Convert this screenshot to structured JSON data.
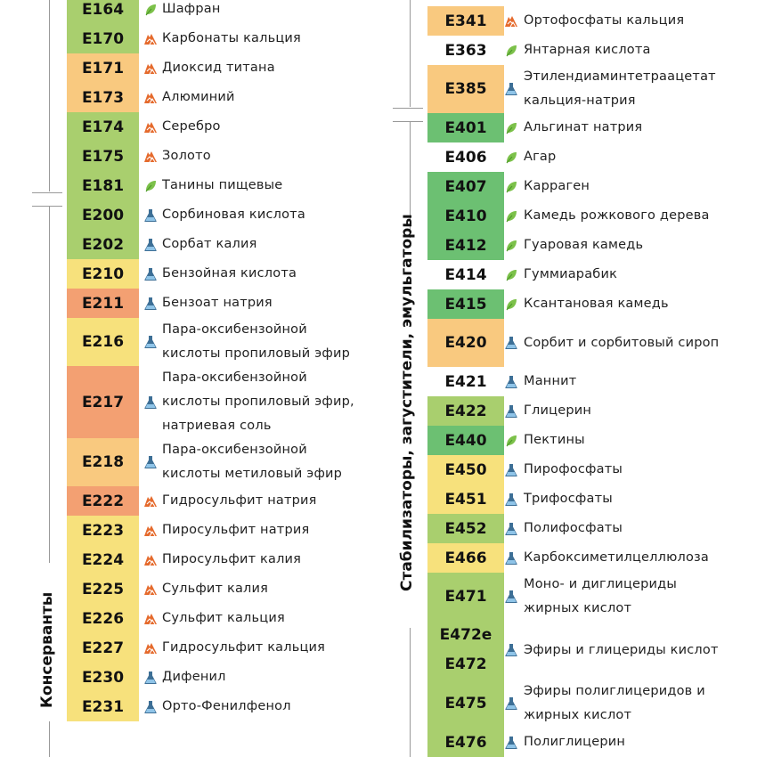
{
  "colors": {
    "green": "#a9cf6e",
    "darkgreen": "#6cc072",
    "yellow": "#f7e17c",
    "lightorange": "#f9c97f",
    "orange": "#f3a072",
    "white": "#ffffff"
  },
  "left_label": "Консерванты",
  "right_label": "Стабилизаторы, загустители, эмульгаторы",
  "left_column": [
    {
      "codes": [
        "E164"
      ],
      "name": [
        "Шафран"
      ],
      "icon": "leaf",
      "h": 33,
      "color": "green"
    },
    {
      "codes": [
        "E170"
      ],
      "name": [
        "Карбонаты кальция"
      ],
      "icon": "rock",
      "h": 33,
      "color": "green"
    },
    {
      "codes": [
        "E171"
      ],
      "name": [
        "Диоксид титана"
      ],
      "icon": "rock",
      "h": 33,
      "color": "lightorange"
    },
    {
      "codes": [
        "E173"
      ],
      "name": [
        "Алюминий"
      ],
      "icon": "rock",
      "h": 33,
      "color": "lightorange"
    },
    {
      "codes": [
        "E174"
      ],
      "name": [
        "Серебро"
      ],
      "icon": "rock",
      "h": 33,
      "color": "green"
    },
    {
      "codes": [
        "E175"
      ],
      "name": [
        "Золото"
      ],
      "icon": "rock",
      "h": 33,
      "color": "green"
    },
    {
      "codes": [
        "E181"
      ],
      "name": [
        "Танины пищевые"
      ],
      "icon": "leaf",
      "h": 33,
      "color": "green"
    },
    {
      "codes": [
        "E200"
      ],
      "name": [
        "Сорбиновая кислота"
      ],
      "icon": "flask",
      "h": 33,
      "color": "green"
    },
    {
      "codes": [
        "E202"
      ],
      "name": [
        "Сорбат калия"
      ],
      "icon": "flask",
      "h": 33,
      "color": "green"
    },
    {
      "codes": [
        "E210"
      ],
      "name": [
        "Бензойная кислота"
      ],
      "icon": "flask",
      "h": 33,
      "color": "yellow"
    },
    {
      "codes": [
        "E211"
      ],
      "name": [
        "Бензоат натрия"
      ],
      "icon": "flask",
      "h": 33,
      "color": "orange"
    },
    {
      "codes": [
        "E216"
      ],
      "name": [
        "Пара-оксибензойной",
        "кислоты пропиловый эфир"
      ],
      "icon": "flask",
      "h": 54,
      "color": "yellow"
    },
    {
      "codes": [
        "E217"
      ],
      "name": [
        "Пара-оксибензойной",
        "кислоты пропиловый эфир,",
        "натриевая соль"
      ],
      "icon": "flask",
      "h": 81,
      "color": "orange"
    },
    {
      "codes": [
        "E218"
      ],
      "name": [
        "Пара-оксибензойной",
        "кислоты метиловый эфир"
      ],
      "icon": "flask",
      "h": 54,
      "color": "lightorange"
    },
    {
      "codes": [
        "E222"
      ],
      "name": [
        "Гидросульфит натрия"
      ],
      "icon": "rock",
      "h": 33,
      "color": "orange"
    },
    {
      "codes": [
        "E223"
      ],
      "name": [
        "Пиросульфит натрия"
      ],
      "icon": "rock",
      "h": 33,
      "color": "yellow"
    },
    {
      "codes": [
        "E224"
      ],
      "name": [
        "Пиросульфит калия"
      ],
      "icon": "rock",
      "h": 33,
      "color": "yellow"
    },
    {
      "codes": [
        "E225"
      ],
      "name": [
        "Сульфит калия"
      ],
      "icon": "rock",
      "h": 33,
      "color": "yellow"
    },
    {
      "codes": [
        "E226"
      ],
      "name": [
        "Сульфит кальция"
      ],
      "icon": "rock",
      "h": 33,
      "color": "yellow"
    },
    {
      "codes": [
        "E227"
      ],
      "name": [
        "Гидросульфит кальция"
      ],
      "icon": "rock",
      "h": 33,
      "color": "yellow"
    },
    {
      "codes": [
        "E230"
      ],
      "name": [
        "Дифенил"
      ],
      "icon": "flask",
      "h": 33,
      "color": "yellow"
    },
    {
      "codes": [
        "E231"
      ],
      "name": [
        "Орто-Фенилфенол"
      ],
      "icon": "flask",
      "h": 33,
      "color": "yellow"
    }
  ],
  "right_column": [
    {
      "codes": [
        "E341"
      ],
      "name": [
        "Ортофосфаты кальция"
      ],
      "icon": "rock",
      "h": 33,
      "color": "lightorange"
    },
    {
      "codes": [
        "E363"
      ],
      "name": [
        "Янтарная кислота"
      ],
      "icon": "leaf",
      "h": 33,
      "color": "white"
    },
    {
      "codes": [
        "E385"
      ],
      "name": [
        "Этилендиаминтетраацетат",
        "кальция-натрия"
      ],
      "icon": "flask",
      "h": 54,
      "color": "lightorange"
    },
    {
      "codes": [
        "E401"
      ],
      "name": [
        "Альгинат натрия"
      ],
      "icon": "leaf",
      "h": 33,
      "color": "darkgreen"
    },
    {
      "codes": [
        "E406"
      ],
      "name": [
        "Агар"
      ],
      "icon": "leaf",
      "h": 33,
      "color": "white"
    },
    {
      "codes": [
        "E407"
      ],
      "name": [
        "Карраген"
      ],
      "icon": "leaf",
      "h": 33,
      "color": "darkgreen"
    },
    {
      "codes": [
        "E410"
      ],
      "name": [
        "Камедь рожкового дерева"
      ],
      "icon": "leaf",
      "h": 33,
      "color": "darkgreen"
    },
    {
      "codes": [
        "E412"
      ],
      "name": [
        "Гуаровая камедь"
      ],
      "icon": "leaf",
      "h": 33,
      "color": "darkgreen"
    },
    {
      "codes": [
        "E414"
      ],
      "name": [
        "Гуммиарабик"
      ],
      "icon": "leaf",
      "h": 33,
      "color": "white"
    },
    {
      "codes": [
        "E415"
      ],
      "name": [
        "Ксантановая камедь"
      ],
      "icon": "leaf",
      "h": 33,
      "color": "darkgreen"
    },
    {
      "codes": [
        "E420"
      ],
      "name": [
        "Сорбит и сорбитовый сироп"
      ],
      "icon": "flask",
      "h": 54,
      "color": "lightorange"
    },
    {
      "codes": [
        "E421"
      ],
      "name": [
        "Маннит"
      ],
      "icon": "flask",
      "h": 33,
      "color": "white"
    },
    {
      "codes": [
        "E422"
      ],
      "name": [
        "Глицерин"
      ],
      "icon": "flask",
      "h": 33,
      "color": "green"
    },
    {
      "codes": [
        "E440"
      ],
      "name": [
        "Пектины"
      ],
      "icon": "leaf",
      "h": 33,
      "color": "darkgreen"
    },
    {
      "codes": [
        "E450"
      ],
      "name": [
        "Пирофосфаты"
      ],
      "icon": "flask",
      "h": 33,
      "color": "yellow"
    },
    {
      "codes": [
        "E451"
      ],
      "name": [
        "Трифосфаты"
      ],
      "icon": "flask",
      "h": 33,
      "color": "yellow"
    },
    {
      "codes": [
        "E452"
      ],
      "name": [
        "Полифосфаты"
      ],
      "icon": "flask",
      "h": 33,
      "color": "green"
    },
    {
      "codes": [
        "E466"
      ],
      "name": [
        "Карбоксиметилцеллюлоза"
      ],
      "icon": "flask",
      "h": 33,
      "color": "yellow"
    },
    {
      "codes": [
        "E471"
      ],
      "name": [
        "Моно- и диглицериды",
        "жирных кислот"
      ],
      "icon": "flask",
      "h": 54,
      "color": "green"
    },
    {
      "codes": [
        "E472e",
        "E472"
      ],
      "name": [
        "Эфиры и глицериды кислот"
      ],
      "icon": "flask",
      "h": 66,
      "color": "green"
    },
    {
      "codes": [
        "E475"
      ],
      "name": [
        "Эфиры полиглицеридов и",
        "жирных кислот"
      ],
      "icon": "flask",
      "h": 54,
      "color": "green"
    },
    {
      "codes": [
        "E476"
      ],
      "name": [
        "Полиглицерин"
      ],
      "icon": "flask",
      "h": 33,
      "color": "green"
    }
  ]
}
